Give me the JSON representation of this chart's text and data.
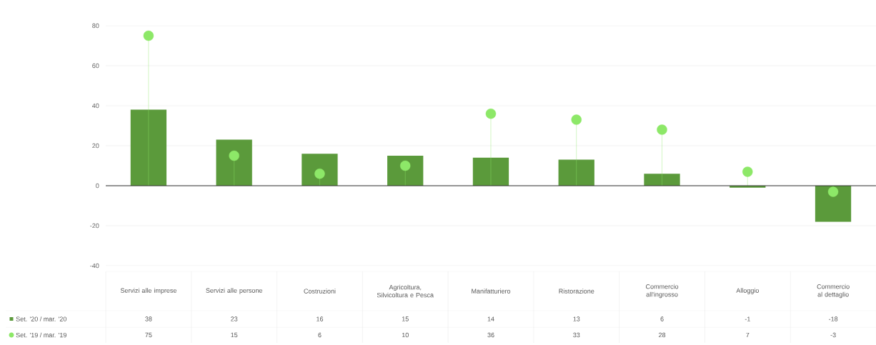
{
  "chart_data": {
    "type": "bar",
    "categories": [
      "Servizi alle imprese",
      "Servizi alle persone",
      "Costruzioni",
      "Agricoltura, Silvicoltura e Pesca",
      "Manifatturiero",
      "Ristorazione",
      "Commercio all'ingrosso",
      "Alloggio",
      "Commercio al dettaglio"
    ],
    "series": [
      {
        "name": "Set. '20 / mar. '20",
        "color": "#5b9a3b",
        "values": [
          38,
          23,
          16,
          15,
          14,
          13,
          6,
          -1,
          -18
        ]
      },
      {
        "name": "Set. '19 / mar. '19",
        "type": "lollipop",
        "color": "#8de868",
        "values": [
          75,
          15,
          6,
          10,
          36,
          33,
          28,
          7,
          -3
        ]
      }
    ],
    "ylim": [
      -40,
      80
    ],
    "yticks": [
      -40,
      -20,
      0,
      20,
      40,
      60,
      80
    ],
    "grid": "y",
    "legend": "bottom left",
    "data_labels": true
  }
}
